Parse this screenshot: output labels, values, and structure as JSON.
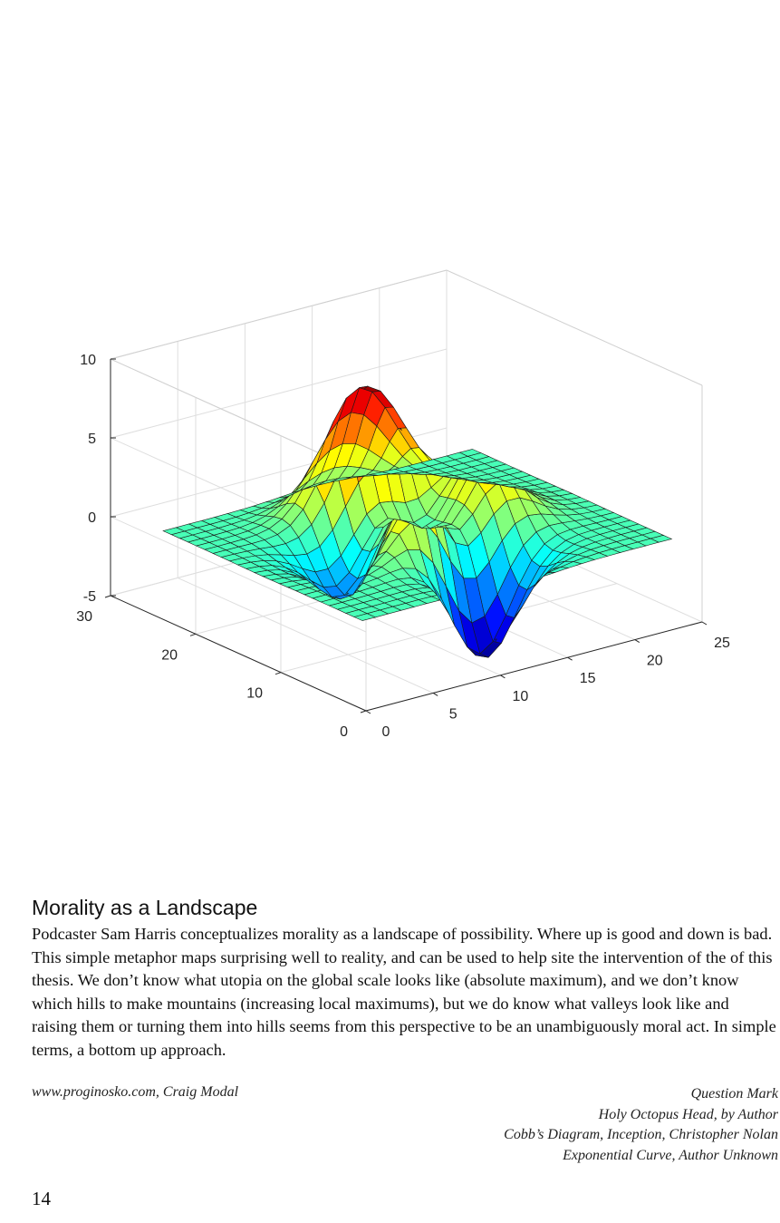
{
  "chart_data": {
    "type": "surface",
    "x_range": [
      0,
      25
    ],
    "y_range": [
      0,
      30
    ],
    "z_range": [
      -5,
      10
    ],
    "x_ticks": [
      "0",
      "5",
      "10",
      "15",
      "20",
      "25"
    ],
    "y_ticks": [
      "0",
      "10",
      "20",
      "30"
    ],
    "z_ticks": [
      "-5",
      "0",
      "5",
      "10"
    ],
    "grid": true,
    "colormap": "jet",
    "peak_max": 8.1,
    "valley_min": -6.5,
    "grid_size": [
      25,
      25
    ]
  },
  "text": {
    "heading": "Morality as a Landscape",
    "body": "Podcaster Sam Harris conceptualizes morality as a landscape of possibility. Where up is good and down is bad. This simple metaphor maps surprising well to reality, and can be used to help site the intervention of the of this thesis. We don’t know what utopia on the global scale looks like (absolute maximum), and we don’t know which hills to make mountains (increasing local maximums), but we do know what valleys look like and raising them or turning them into hills seems from this perspective to be an unambiguously moral act.  In simple terms, a bottom up approach.",
    "credit_left": "www.proginosko.com, Craig Modal",
    "credits_right": [
      "Question Mark",
      "Holy Octopus Head, by Author",
      "Cobb’s Diagram, Inception, Christopher Nolan",
      "Exponential Curve, Author Unknown"
    ],
    "page_number": "14"
  }
}
